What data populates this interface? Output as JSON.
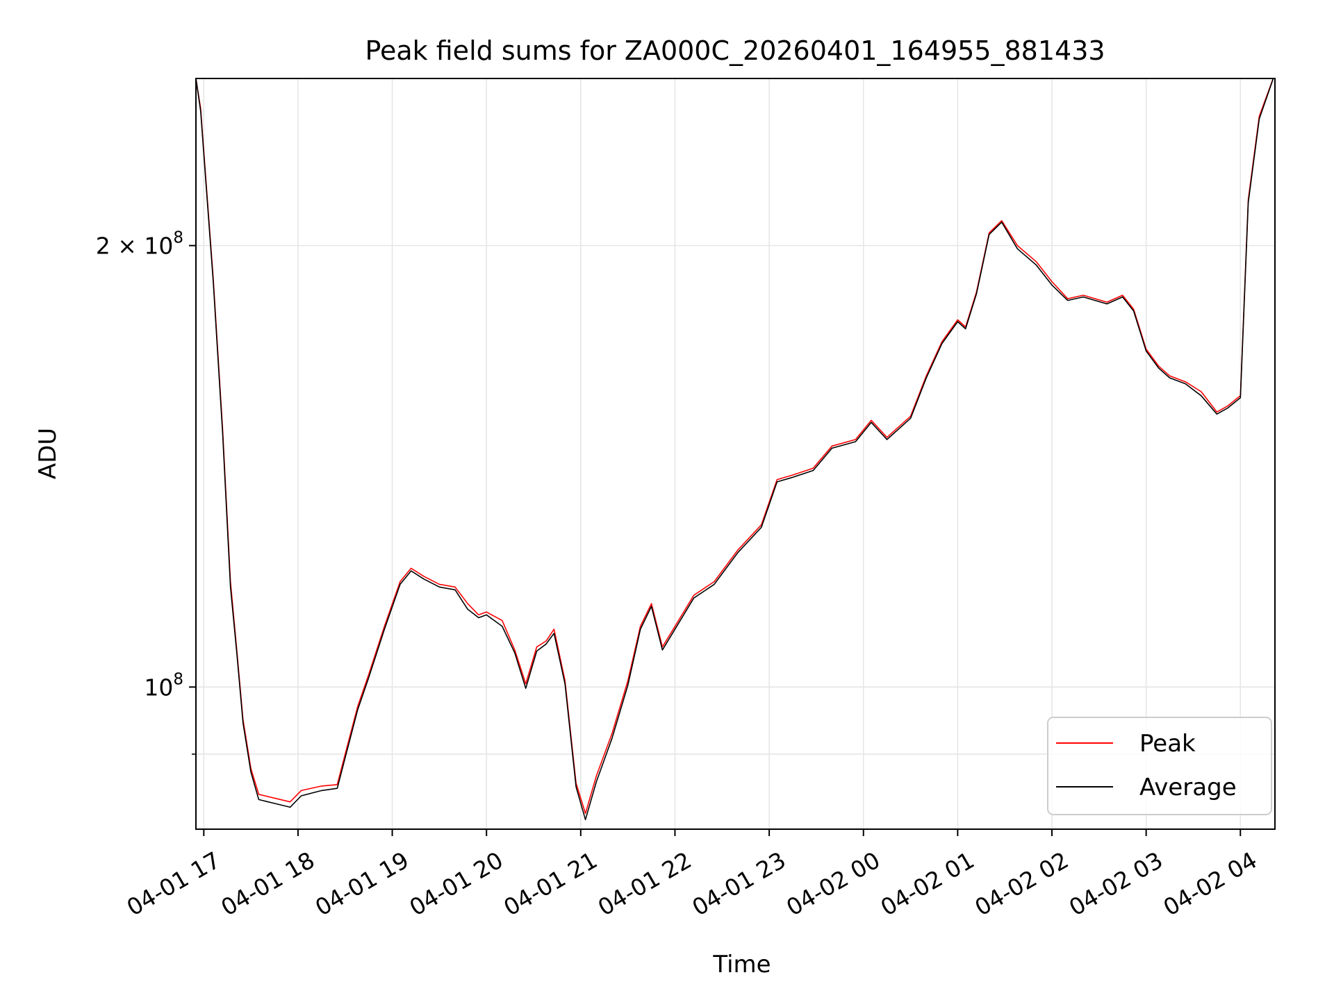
{
  "chart_data": {
    "type": "line",
    "title": "Peak field sums for ZA000C_20260401_164955_881433",
    "xlabel": "Time",
    "ylabel": "ADU",
    "yscale": "log",
    "grid": true,
    "legend_position": "lower-right",
    "xlim": [
      "2026-04-01 16:55",
      "2026-04-02 04:22"
    ],
    "ylim": [
      80000000,
      260000000
    ],
    "x_ticks": [
      {
        "label": "04-01 17",
        "t": "2026-04-01 17:00"
      },
      {
        "label": "04-01 18",
        "t": "2026-04-01 18:00"
      },
      {
        "label": "04-01 19",
        "t": "2026-04-01 19:00"
      },
      {
        "label": "04-01 20",
        "t": "2026-04-01 20:00"
      },
      {
        "label": "04-01 21",
        "t": "2026-04-01 21:00"
      },
      {
        "label": "04-01 22",
        "t": "2026-04-01 22:00"
      },
      {
        "label": "04-01 23",
        "t": "2026-04-01 23:00"
      },
      {
        "label": "04-02 00",
        "t": "2026-04-02 00:00"
      },
      {
        "label": "04-02 01",
        "t": "2026-04-02 01:00"
      },
      {
        "label": "04-02 02",
        "t": "2026-04-02 02:00"
      },
      {
        "label": "04-02 03",
        "t": "2026-04-02 03:00"
      },
      {
        "label": "04-02 04",
        "t": "2026-04-02 04:00"
      }
    ],
    "y_ticks": [
      {
        "label_base": "10",
        "label_exp": "8",
        "label_coef": "",
        "value": 100000000
      },
      {
        "label_base": "10",
        "label_exp": "8",
        "label_coef": "2 × ",
        "value": 200000000
      }
    ],
    "y_minor_ticks": [
      90000000
    ],
    "series": [
      {
        "name": "Peak",
        "color": "#ff0000",
        "points": [
          [
            "2026-04-01 16:55",
            260000000
          ],
          [
            "2026-04-01 16:58",
            248000000
          ],
          [
            "2026-04-01 17:00",
            232000000
          ],
          [
            "2026-04-01 17:06",
            190000000
          ],
          [
            "2026-04-01 17:12",
            150000000
          ],
          [
            "2026-04-01 17:17",
            118000000
          ],
          [
            "2026-04-01 17:21",
            106000000
          ],
          [
            "2026-04-01 17:25",
            95000000
          ],
          [
            "2026-04-01 17:30",
            88000000
          ],
          [
            "2026-04-01 17:35",
            84500000
          ],
          [
            "2026-04-01 17:45",
            84000000
          ],
          [
            "2026-04-01 17:55",
            83500000
          ],
          [
            "2026-04-01 18:02",
            85000000
          ],
          [
            "2026-04-01 18:15",
            85600000
          ],
          [
            "2026-04-01 18:25",
            85800000
          ],
          [
            "2026-04-01 18:30",
            90000000
          ],
          [
            "2026-04-01 18:38",
            97000000
          ],
          [
            "2026-04-01 18:45",
            102000000
          ],
          [
            "2026-04-01 18:55",
            110000000
          ],
          [
            "2026-04-01 19:05",
            118000000
          ],
          [
            "2026-04-01 19:12",
            120500000
          ],
          [
            "2026-04-01 19:20",
            119000000
          ],
          [
            "2026-04-01 19:30",
            117500000
          ],
          [
            "2026-04-01 19:40",
            117000000
          ],
          [
            "2026-04-01 19:48",
            114000000
          ],
          [
            "2026-04-01 19:55",
            112000000
          ],
          [
            "2026-04-01 20:00",
            112500000
          ],
          [
            "2026-04-01 20:10",
            111000000
          ],
          [
            "2026-04-01 20:18",
            106000000
          ],
          [
            "2026-04-01 20:25",
            100500000
          ],
          [
            "2026-04-01 20:32",
            106500000
          ],
          [
            "2026-04-01 20:38",
            107500000
          ],
          [
            "2026-04-01 20:43",
            109500000
          ],
          [
            "2026-04-01 20:50",
            101000000
          ],
          [
            "2026-04-01 20:57",
            86000000
          ],
          [
            "2026-04-01 21:03",
            82000000
          ],
          [
            "2026-04-01 21:10",
            87000000
          ],
          [
            "2026-04-01 21:20",
            93000000
          ],
          [
            "2026-04-01 21:30",
            101000000
          ],
          [
            "2026-04-01 21:38",
            110000000
          ],
          [
            "2026-04-01 21:45",
            114000000
          ],
          [
            "2026-04-01 21:52",
            106500000
          ],
          [
            "2026-04-01 22:00",
            110000000
          ],
          [
            "2026-04-01 22:12",
            115500000
          ],
          [
            "2026-04-01 22:25",
            118000000
          ],
          [
            "2026-04-01 22:40",
            124000000
          ],
          [
            "2026-04-01 22:55",
            129000000
          ],
          [
            "2026-04-01 23:05",
            138500000
          ],
          [
            "2026-04-01 23:15",
            139500000
          ],
          [
            "2026-04-01 23:28",
            141000000
          ],
          [
            "2026-04-01 23:40",
            146000000
          ],
          [
            "2026-04-01 23:55",
            147500000
          ],
          [
            "2026-04-02 00:05",
            152000000
          ],
          [
            "2026-04-02 00:15",
            148000000
          ],
          [
            "2026-04-02 00:30",
            153000000
          ],
          [
            "2026-04-02 00:40",
            163000000
          ],
          [
            "2026-04-02 00:50",
            172000000
          ],
          [
            "2026-04-02 01:00",
            178000000
          ],
          [
            "2026-04-02 01:05",
            176000000
          ],
          [
            "2026-04-02 01:12",
            186000000
          ],
          [
            "2026-04-02 01:20",
            204000000
          ],
          [
            "2026-04-02 01:28",
            208000000
          ],
          [
            "2026-04-02 01:38",
            200000000
          ],
          [
            "2026-04-02 01:50",
            195000000
          ],
          [
            "2026-04-02 02:00",
            189000000
          ],
          [
            "2026-04-02 02:10",
            184000000
          ],
          [
            "2026-04-02 02:20",
            185000000
          ],
          [
            "2026-04-02 02:35",
            183000000
          ],
          [
            "2026-04-02 02:45",
            185000000
          ],
          [
            "2026-04-02 02:52",
            181000000
          ],
          [
            "2026-04-02 03:00",
            170000000
          ],
          [
            "2026-04-02 03:08",
            165500000
          ],
          [
            "2026-04-02 03:15",
            163000000
          ],
          [
            "2026-04-02 03:25",
            161500000
          ],
          [
            "2026-04-02 03:35",
            159000000
          ],
          [
            "2026-04-02 03:45",
            154000000
          ],
          [
            "2026-04-02 03:52",
            155500000
          ],
          [
            "2026-04-02 04:00",
            158000000
          ],
          [
            "2026-04-02 04:05",
            215000000
          ],
          [
            "2026-04-02 04:12",
            245000000
          ],
          [
            "2026-04-02 04:22",
            262000000
          ]
        ]
      },
      {
        "name": "Average",
        "color": "#000000",
        "points": [
          [
            "2026-04-01 16:55",
            260000000
          ],
          [
            "2026-04-01 16:58",
            247000000
          ],
          [
            "2026-04-01 17:00",
            231000000
          ],
          [
            "2026-04-01 17:06",
            189000000
          ],
          [
            "2026-04-01 17:12",
            149000000
          ],
          [
            "2026-04-01 17:17",
            117000000
          ],
          [
            "2026-04-01 17:21",
            105500000
          ],
          [
            "2026-04-01 17:25",
            94500000
          ],
          [
            "2026-04-01 17:30",
            87500000
          ],
          [
            "2026-04-01 17:35",
            83800000
          ],
          [
            "2026-04-01 17:45",
            83300000
          ],
          [
            "2026-04-01 17:55",
            82800000
          ],
          [
            "2026-04-01 18:02",
            84300000
          ],
          [
            "2026-04-01 18:15",
            85000000
          ],
          [
            "2026-04-01 18:25",
            85300000
          ],
          [
            "2026-04-01 18:30",
            89500000
          ],
          [
            "2026-04-01 18:38",
            96500000
          ],
          [
            "2026-04-01 18:45",
            101500000
          ],
          [
            "2026-04-01 18:55",
            109500000
          ],
          [
            "2026-04-01 19:05",
            117500000
          ],
          [
            "2026-04-01 19:12",
            120000000
          ],
          [
            "2026-04-01 19:20",
            118500000
          ],
          [
            "2026-04-01 19:30",
            117000000
          ],
          [
            "2026-04-01 19:40",
            116500000
          ],
          [
            "2026-04-01 19:48",
            113000000
          ],
          [
            "2026-04-01 19:55",
            111500000
          ],
          [
            "2026-04-01 20:00",
            112000000
          ],
          [
            "2026-04-01 20:10",
            110000000
          ],
          [
            "2026-04-01 20:18",
            105500000
          ],
          [
            "2026-04-01 20:25",
            99800000
          ],
          [
            "2026-04-01 20:32",
            105800000
          ],
          [
            "2026-04-01 20:38",
            107000000
          ],
          [
            "2026-04-01 20:43",
            108800000
          ],
          [
            "2026-04-01 20:50",
            100500000
          ],
          [
            "2026-04-01 20:57",
            85500000
          ],
          [
            "2026-04-01 21:03",
            81200000
          ],
          [
            "2026-04-01 21:10",
            86200000
          ],
          [
            "2026-04-01 21:20",
            92300000
          ],
          [
            "2026-04-01 21:30",
            100300000
          ],
          [
            "2026-04-01 21:38",
            109500000
          ],
          [
            "2026-04-01 21:45",
            113500000
          ],
          [
            "2026-04-01 21:52",
            106000000
          ],
          [
            "2026-04-01 22:00",
            109500000
          ],
          [
            "2026-04-01 22:12",
            115000000
          ],
          [
            "2026-04-01 22:25",
            117500000
          ],
          [
            "2026-04-01 22:40",
            123500000
          ],
          [
            "2026-04-01 22:55",
            128500000
          ],
          [
            "2026-04-01 23:05",
            138000000
          ],
          [
            "2026-04-01 23:15",
            139000000
          ],
          [
            "2026-04-01 23:28",
            140500000
          ],
          [
            "2026-04-01 23:40",
            145500000
          ],
          [
            "2026-04-01 23:55",
            147000000
          ],
          [
            "2026-04-02 00:05",
            151500000
          ],
          [
            "2026-04-02 00:15",
            147500000
          ],
          [
            "2026-04-02 00:30",
            152500000
          ],
          [
            "2026-04-02 00:40",
            162500000
          ],
          [
            "2026-04-02 00:50",
            171500000
          ],
          [
            "2026-04-02 01:00",
            177500000
          ],
          [
            "2026-04-02 01:05",
            175500000
          ],
          [
            "2026-04-02 01:12",
            185500000
          ],
          [
            "2026-04-02 01:20",
            203500000
          ],
          [
            "2026-04-02 01:28",
            207500000
          ],
          [
            "2026-04-02 01:38",
            199000000
          ],
          [
            "2026-04-02 01:50",
            194000000
          ],
          [
            "2026-04-02 02:00",
            188000000
          ],
          [
            "2026-04-02 02:10",
            183500000
          ],
          [
            "2026-04-02 02:20",
            184500000
          ],
          [
            "2026-04-02 02:35",
            182500000
          ],
          [
            "2026-04-02 02:45",
            184500000
          ],
          [
            "2026-04-02 02:52",
            180500000
          ],
          [
            "2026-04-02 03:00",
            169500000
          ],
          [
            "2026-04-02 03:08",
            165000000
          ],
          [
            "2026-04-02 03:15",
            162500000
          ],
          [
            "2026-04-02 03:25",
            161000000
          ],
          [
            "2026-04-02 03:35",
            158000000
          ],
          [
            "2026-04-02 03:45",
            153500000
          ],
          [
            "2026-04-02 03:52",
            155000000
          ],
          [
            "2026-04-02 04:00",
            157500000
          ],
          [
            "2026-04-02 04:05",
            214000000
          ],
          [
            "2026-04-02 04:12",
            244000000
          ],
          [
            "2026-04-02 04:22",
            262000000
          ]
        ]
      }
    ]
  }
}
